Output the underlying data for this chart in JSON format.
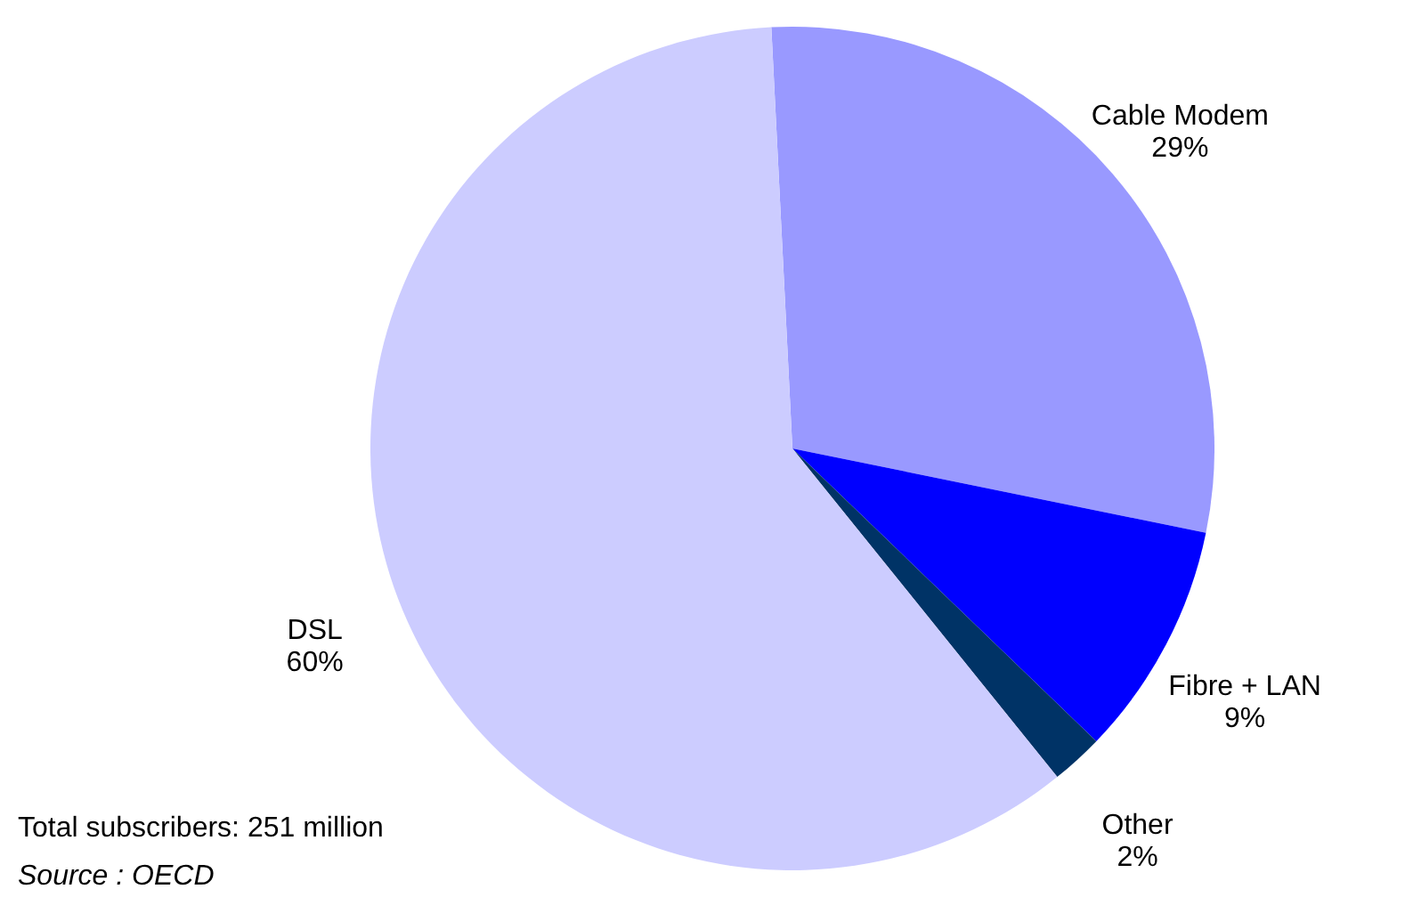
{
  "chart_data": {
    "type": "pie",
    "categories": [
      "Cable Modem",
      "Fibre + LAN",
      "Other",
      "DSL"
    ],
    "values": [
      29,
      9,
      2,
      60
    ],
    "value_labels": [
      "29%",
      "9%",
      "2%",
      "60%"
    ],
    "colors": [
      "#9999ff",
      "#0000ff",
      "#003366",
      "#ccccff"
    ],
    "annotations": [
      "Total subscribers: 251 million",
      "Source : OECD"
    ]
  }
}
